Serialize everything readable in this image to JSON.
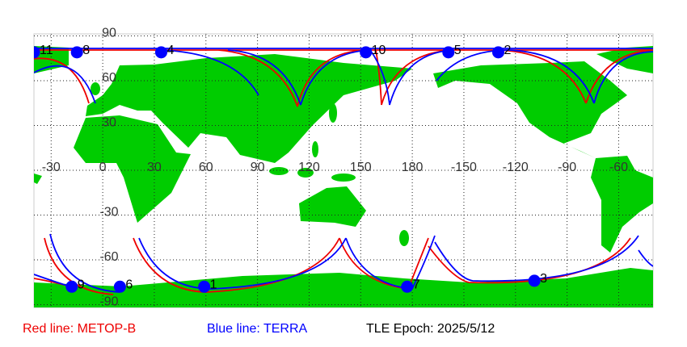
{
  "map": {
    "lat_labels": [
      90,
      60,
      30,
      -30,
      -60,
      -90
    ],
    "lon_labels": [
      -30,
      0,
      30,
      60,
      90,
      120,
      150,
      180,
      -150,
      -120,
      -90,
      -60
    ],
    "satellites": [
      {
        "label": "11",
        "lon": -40,
        "lat": 79
      },
      {
        "label": "8",
        "lon": -15,
        "lat": 79
      },
      {
        "label": "4",
        "lon": 34,
        "lat": 79
      },
      {
        "label": "10",
        "lon": 153,
        "lat": 79
      },
      {
        "label": "5",
        "lon": -159,
        "lat": 79
      },
      {
        "label": "2",
        "lon": -130,
        "lat": 79
      },
      {
        "label": "9",
        "lon": -18,
        "lat": -78
      },
      {
        "label": "6",
        "lon": 10,
        "lat": -78
      },
      {
        "label": "1",
        "lon": 59,
        "lat": -78
      },
      {
        "label": "7",
        "lon": 177,
        "lat": -78
      },
      {
        "label": "3",
        "lon": -109,
        "lat": -74
      }
    ]
  },
  "legend": {
    "red": "Red line: METOP-B",
    "blue": "Blue line: TERRA",
    "epoch": "TLE Epoch: 2025/5/12"
  }
}
